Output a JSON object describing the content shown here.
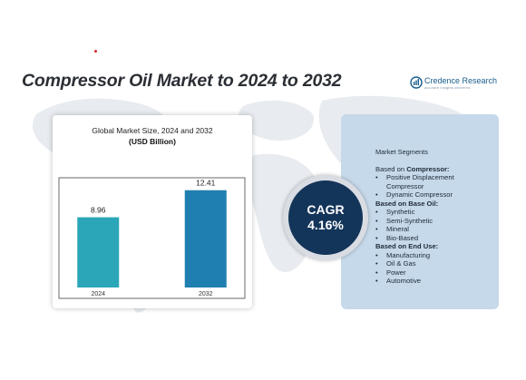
{
  "header": {
    "title": "Compressor Oil Market to 2024 to 2032",
    "brand": "Credence Research",
    "brand_tagline": "accurate insights delivered"
  },
  "chart_data": {
    "type": "bar",
    "title": "Global Market Size, 2024 and 2032",
    "subtitle": "(USD Billion)",
    "categories": [
      "2024",
      "2032"
    ],
    "values": [
      8.96,
      12.41
    ],
    "data_labels": [
      "8.96",
      "12.41"
    ],
    "colors": [
      "#2aa6b8",
      "#1f7fb0"
    ],
    "ylim": [
      0,
      14
    ],
    "grid": false,
    "legend": "none"
  },
  "cagr": {
    "label": "CAGR",
    "value": "4.16%"
  },
  "segments": {
    "title": "Market Segments",
    "groups": [
      {
        "prefix": "Based on ",
        "name": "Compressor:",
        "items": [
          "Positive Displacement Compressor",
          "Dynamic Compressor"
        ]
      },
      {
        "prefix": "",
        "name": "Based on Base Oil:",
        "items": [
          "Synthetic",
          "Semi-Synthetic",
          "Mineral",
          "Bio-Based"
        ]
      },
      {
        "prefix": "",
        "name": "Based on End Use:",
        "items": [
          "Manufacturing",
          "Oil & Gas",
          "Power",
          "Automotive"
        ]
      }
    ]
  },
  "colors": {
    "navy": "#14355a",
    "panel_blue": "#c6d9ea",
    "title_dark": "#2b2f35"
  }
}
